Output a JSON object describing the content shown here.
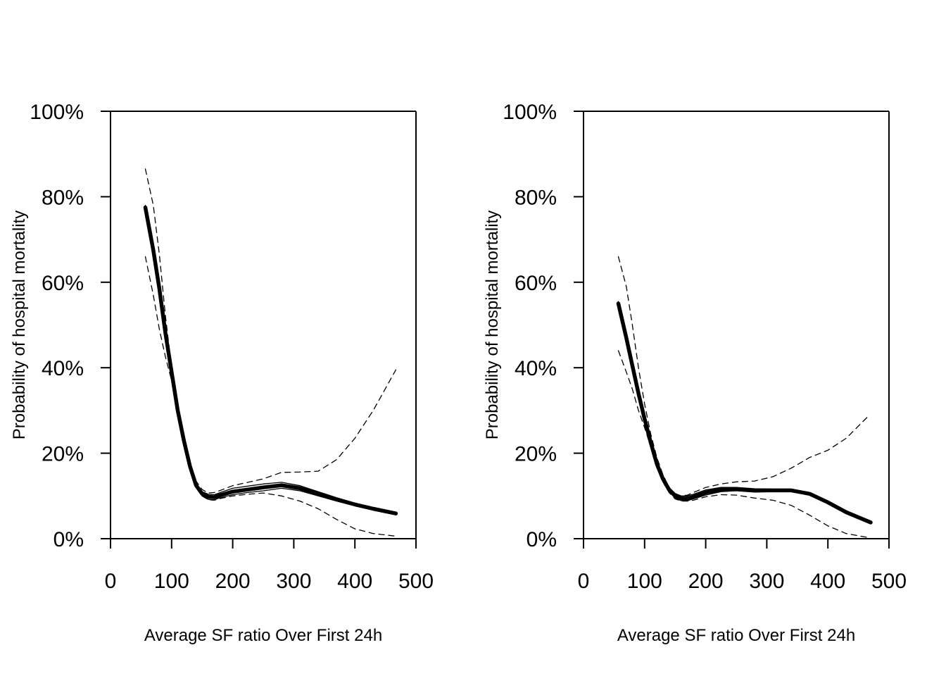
{
  "chart_data": [
    {
      "type": "line",
      "xlabel": "Average SF ratio Over First 24h",
      "ylabel": "Probability of hospital mortality",
      "xlim": [
        0,
        500
      ],
      "ylim": [
        0,
        1
      ],
      "x_ticks": [
        0,
        100,
        200,
        300,
        400,
        500
      ],
      "x_tick_labels": [
        "0",
        "100",
        "200",
        "300",
        "400",
        "500"
      ],
      "y_ticks": [
        0,
        0.2,
        0.4,
        0.6,
        0.8,
        1.0
      ],
      "y_tick_labels": [
        "0%",
        "20%",
        "40%",
        "60%",
        "80%",
        "100%"
      ],
      "series": [
        {
          "style": "thick-solid",
          "x": [
            57,
            70,
            80,
            90,
            100,
            110,
            120,
            130,
            140,
            150,
            160,
            170,
            180,
            200,
            225,
            250,
            280,
            310,
            340,
            370,
            400,
            430,
            467
          ],
          "values": [
            0.775,
            0.675,
            0.585,
            0.48,
            0.39,
            0.3,
            0.23,
            0.17,
            0.125,
            0.105,
            0.098,
            0.097,
            0.102,
            0.11,
            0.115,
            0.12,
            0.125,
            0.118,
            0.105,
            0.092,
            0.08,
            0.07,
            0.059
          ]
        },
        {
          "style": "dashed",
          "x": [
            57,
            70,
            80,
            90,
            100,
            110,
            120,
            130,
            140,
            150,
            160,
            170,
            180,
            200,
            225,
            250,
            280,
            310,
            340,
            370,
            400,
            430,
            467
          ],
          "values": [
            0.865,
            0.78,
            0.665,
            0.52,
            0.4,
            0.31,
            0.24,
            0.18,
            0.135,
            0.115,
            0.107,
            0.108,
            0.113,
            0.124,
            0.132,
            0.14,
            0.155,
            0.156,
            0.158,
            0.185,
            0.235,
            0.3,
            0.395
          ]
        },
        {
          "style": "dashed",
          "x": [
            57,
            70,
            80,
            90,
            100,
            110,
            120,
            130,
            140,
            150,
            160,
            170,
            180,
            200,
            225,
            250,
            280,
            310,
            340,
            370,
            400,
            430,
            467
          ],
          "values": [
            0.66,
            0.57,
            0.49,
            0.425,
            0.37,
            0.29,
            0.215,
            0.16,
            0.12,
            0.1,
            0.091,
            0.09,
            0.094,
            0.1,
            0.104,
            0.107,
            0.1,
            0.088,
            0.07,
            0.045,
            0.023,
            0.012,
            0.006
          ]
        },
        {
          "style": "thin-solid",
          "x": [
            57,
            70,
            80,
            90,
            100,
            110,
            120,
            130,
            140,
            150,
            160,
            170,
            180,
            200,
            225,
            250,
            280,
            310,
            340,
            370,
            400,
            430,
            467
          ],
          "values": [
            0.77,
            0.67,
            0.58,
            0.475,
            0.385,
            0.3,
            0.232,
            0.175,
            0.13,
            0.11,
            0.104,
            0.103,
            0.108,
            0.118,
            0.123,
            0.128,
            0.132,
            0.124,
            0.11,
            0.096,
            0.083,
            0.072,
            0.06
          ]
        },
        {
          "style": "thin-solid",
          "x": [
            57,
            70,
            80,
            90,
            100,
            110,
            120,
            130,
            140,
            150,
            160,
            170,
            180,
            200,
            225,
            250,
            280,
            310,
            340,
            370,
            400,
            430,
            467
          ],
          "values": [
            0.78,
            0.68,
            0.59,
            0.485,
            0.395,
            0.3,
            0.228,
            0.165,
            0.12,
            0.1,
            0.092,
            0.091,
            0.096,
            0.103,
            0.108,
            0.112,
            0.118,
            0.112,
            0.1,
            0.088,
            0.077,
            0.068,
            0.058
          ]
        }
      ]
    },
    {
      "type": "line",
      "xlabel": "Average SF ratio Over First 24h",
      "ylabel": "Probability of hospital mortality",
      "xlim": [
        0,
        500
      ],
      "ylim": [
        0,
        1
      ],
      "x_ticks": [
        0,
        100,
        200,
        300,
        400,
        500
      ],
      "x_tick_labels": [
        "0",
        "100",
        "200",
        "300",
        "400",
        "500"
      ],
      "y_ticks": [
        0,
        0.2,
        0.4,
        0.6,
        0.8,
        1.0
      ],
      "y_tick_labels": [
        "0%",
        "20%",
        "40%",
        "60%",
        "80%",
        "100%"
      ],
      "series": [
        {
          "style": "thick-solid",
          "x": [
            57,
            70,
            80,
            90,
            100,
            110,
            120,
            130,
            140,
            150,
            160,
            170,
            180,
            200,
            225,
            250,
            280,
            310,
            340,
            370,
            400,
            430,
            470
          ],
          "values": [
            0.55,
            0.47,
            0.405,
            0.34,
            0.28,
            0.225,
            0.175,
            0.14,
            0.115,
            0.1,
            0.094,
            0.094,
            0.098,
            0.108,
            0.115,
            0.116,
            0.113,
            0.113,
            0.113,
            0.105,
            0.085,
            0.062,
            0.038
          ]
        },
        {
          "style": "dashed",
          "x": [
            57,
            70,
            80,
            90,
            100,
            110,
            120,
            130,
            140,
            150,
            160,
            170,
            180,
            200,
            225,
            250,
            280,
            310,
            340,
            370,
            400,
            430,
            465
          ],
          "values": [
            0.66,
            0.59,
            0.5,
            0.4,
            0.315,
            0.245,
            0.19,
            0.15,
            0.12,
            0.105,
            0.1,
            0.102,
            0.108,
            0.12,
            0.128,
            0.133,
            0.135,
            0.145,
            0.165,
            0.19,
            0.207,
            0.235,
            0.285
          ]
        },
        {
          "style": "dashed",
          "x": [
            57,
            70,
            80,
            90,
            100,
            110,
            120,
            130,
            140,
            150,
            160,
            170,
            180,
            200,
            225,
            250,
            280,
            310,
            340,
            370,
            400,
            430,
            465
          ],
          "values": [
            0.44,
            0.39,
            0.35,
            0.3,
            0.26,
            0.215,
            0.168,
            0.133,
            0.108,
            0.093,
            0.088,
            0.088,
            0.09,
            0.098,
            0.103,
            0.102,
            0.095,
            0.09,
            0.078,
            0.055,
            0.03,
            0.012,
            0.003
          ]
        },
        {
          "style": "thin-solid",
          "x": [
            57,
            70,
            80,
            90,
            100,
            110,
            120,
            130,
            140,
            150,
            160,
            170,
            180,
            200,
            225,
            250,
            280,
            310,
            340,
            370,
            400,
            430,
            470
          ],
          "values": [
            0.545,
            0.468,
            0.405,
            0.345,
            0.285,
            0.232,
            0.182,
            0.146,
            0.12,
            0.106,
            0.1,
            0.1,
            0.104,
            0.114,
            0.12,
            0.12,
            0.117,
            0.116,
            0.115,
            0.107,
            0.087,
            0.064,
            0.04
          ]
        },
        {
          "style": "thin-solid",
          "x": [
            57,
            70,
            80,
            90,
            100,
            110,
            120,
            130,
            140,
            150,
            160,
            170,
            180,
            200,
            225,
            250,
            280,
            310,
            340,
            370,
            400,
            430,
            470
          ],
          "values": [
            0.555,
            0.472,
            0.405,
            0.335,
            0.275,
            0.218,
            0.168,
            0.134,
            0.11,
            0.095,
            0.089,
            0.089,
            0.093,
            0.102,
            0.11,
            0.112,
            0.109,
            0.11,
            0.111,
            0.103,
            0.083,
            0.06,
            0.036
          ]
        }
      ]
    }
  ],
  "colors": {
    "line": "#000000",
    "background": "#ffffff"
  }
}
